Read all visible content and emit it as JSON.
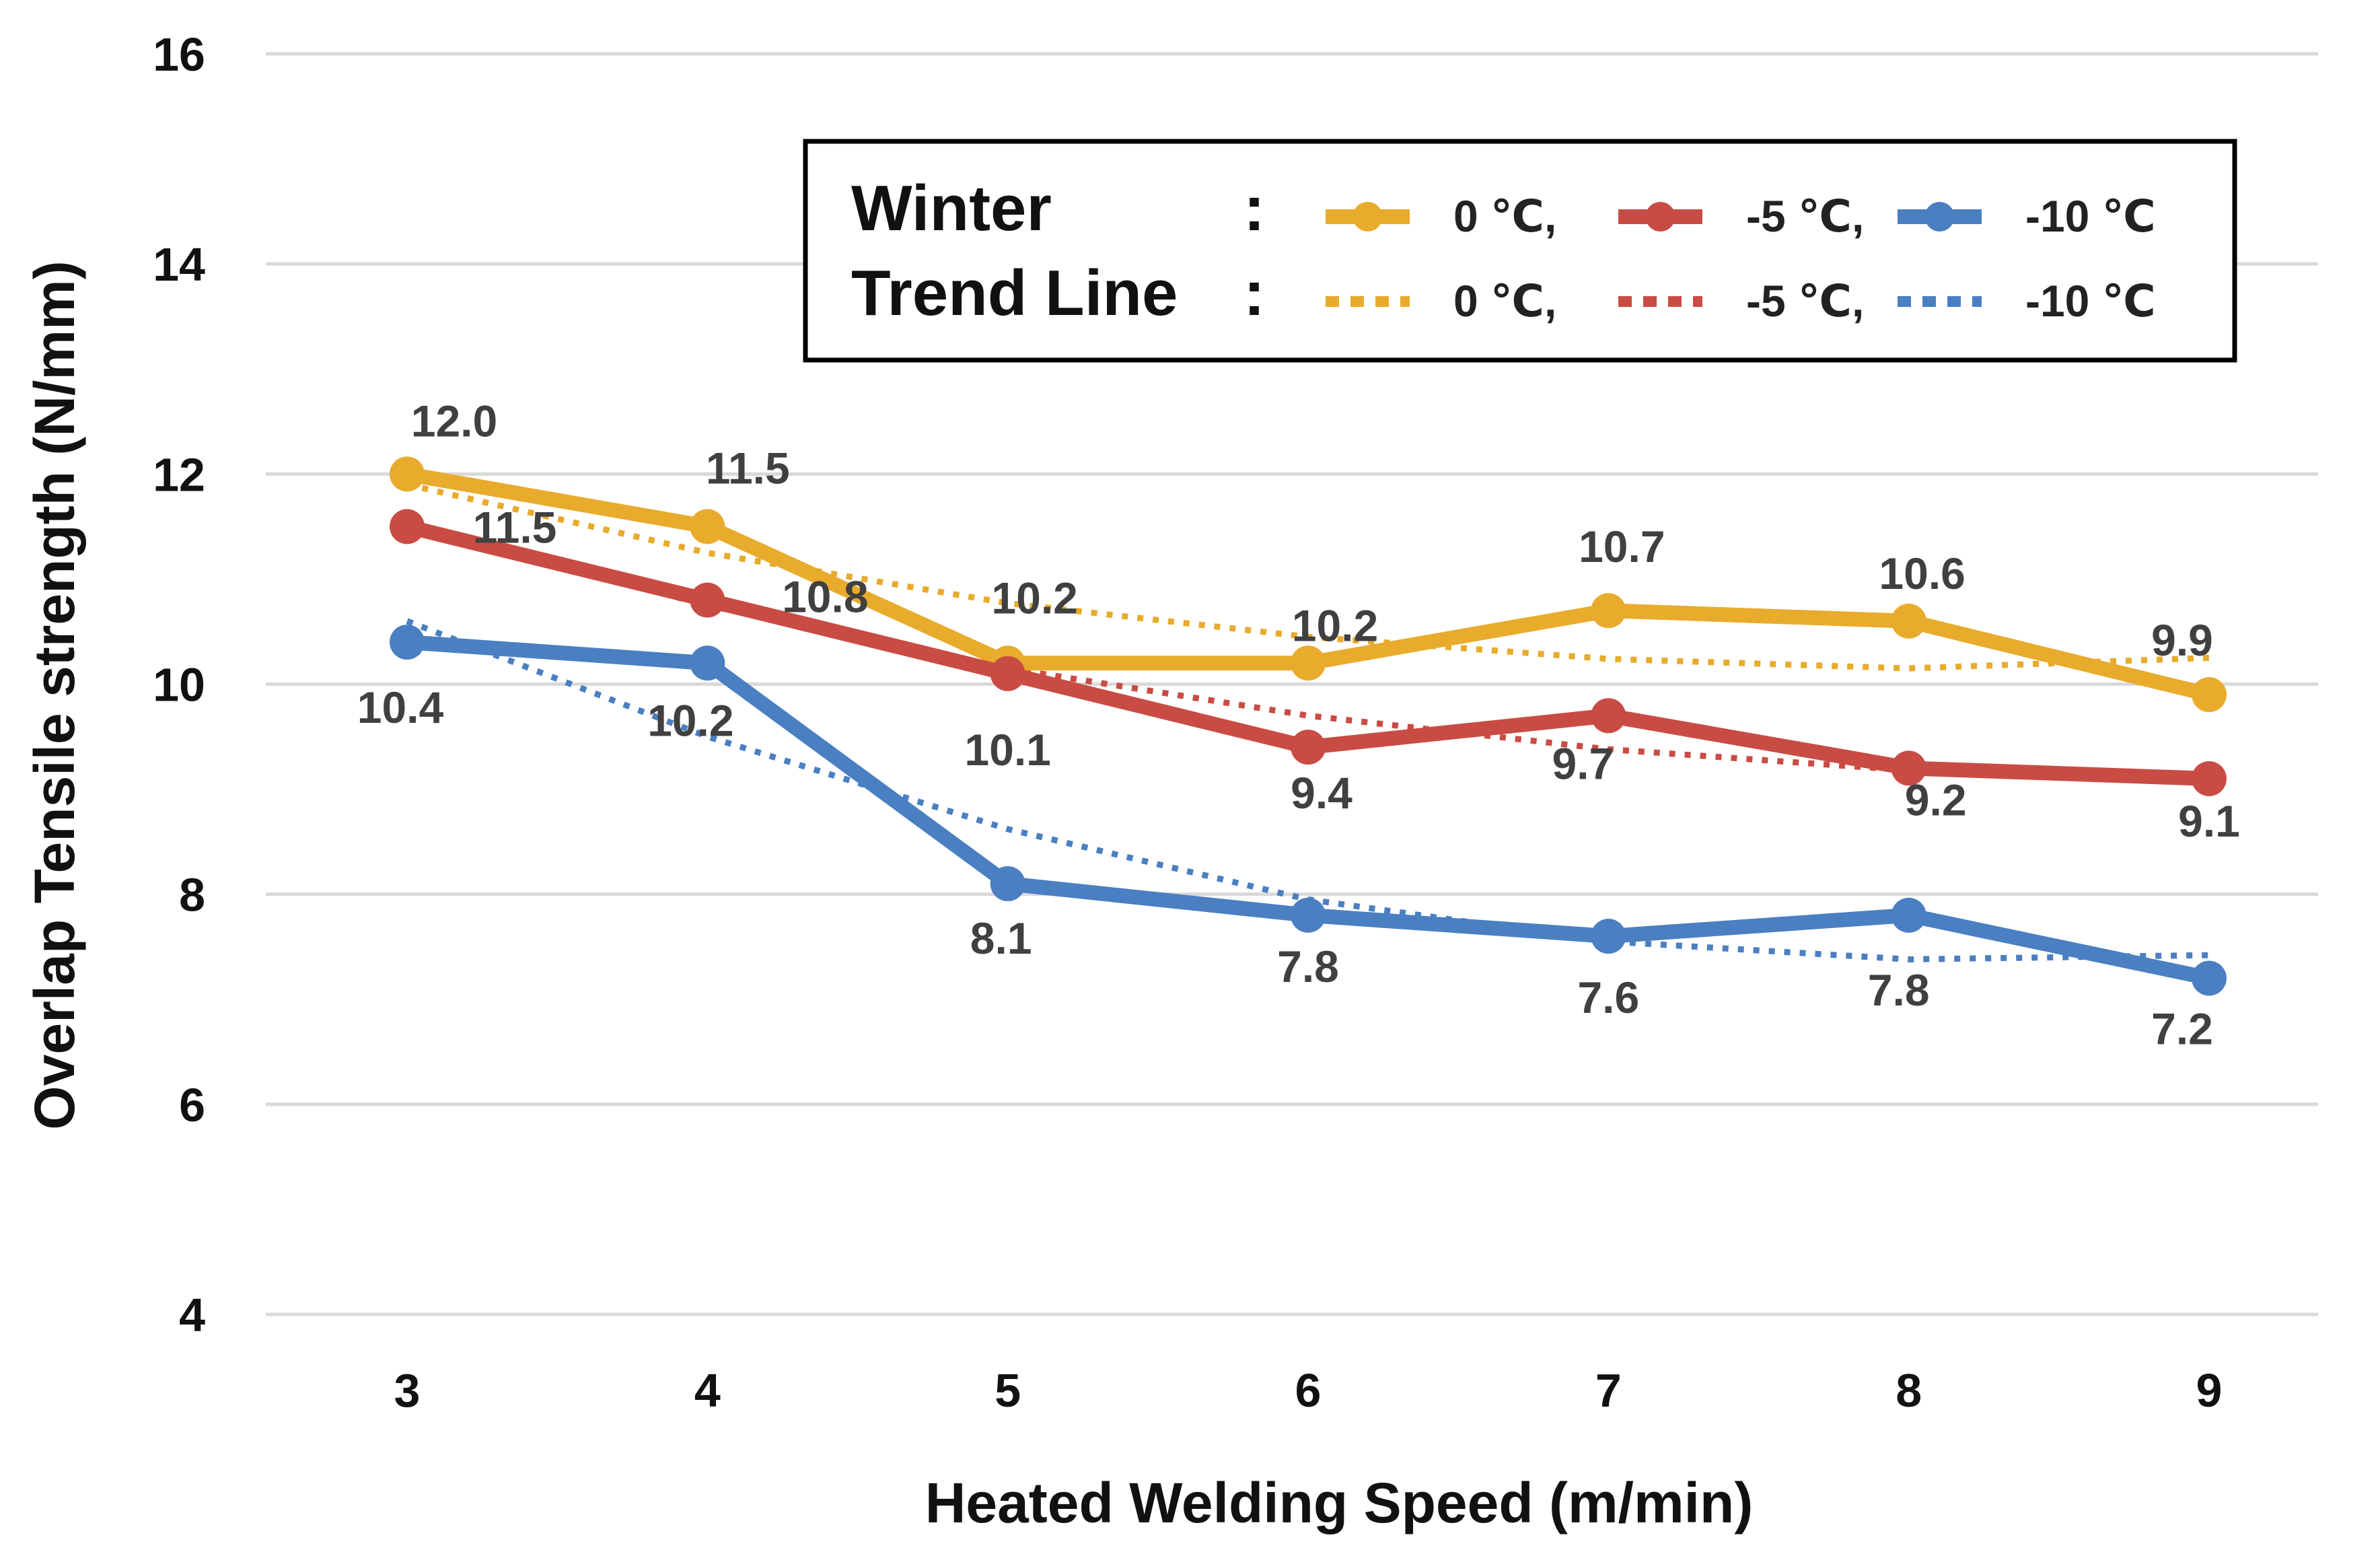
{
  "chart_data": {
    "type": "line",
    "x": [
      3,
      4,
      5,
      6,
      7,
      8,
      9
    ],
    "x_tick_labels": [
      "3",
      "4",
      "5",
      "6",
      "7",
      "8",
      "9"
    ],
    "y_tick_labels": [
      "4",
      "6",
      "8",
      "10",
      "12",
      "14",
      "16"
    ],
    "ylim": [
      4,
      16
    ],
    "grid": true,
    "xlabel": "Heated Welding Speed (m/min)",
    "ylabel": "Overlap Tensile strength (N/mm)",
    "series": [
      {
        "name": "0 ℃,",
        "color": "#e8ab2c",
        "values": [
          12.0,
          11.5,
          10.2,
          10.2,
          10.7,
          10.6,
          9.9
        ],
        "labels": [
          "12.0",
          "11.5",
          "10.2",
          "10.2",
          "10.7",
          "10.6",
          "9.9"
        ],
        "trend": [
          11.9,
          11.25,
          10.77,
          10.45,
          10.24,
          10.15,
          10.25
        ]
      },
      {
        "name": "-5 ℃,",
        "color": "#c94c44",
        "values": [
          11.5,
          10.8,
          10.1,
          9.4,
          9.7,
          9.2,
          9.1
        ],
        "labels": [
          "11.5",
          "10.8",
          "10.1",
          "9.4",
          "9.7",
          "9.2",
          "9.1"
        ],
        "trend": [
          11.5,
          10.75,
          10.15,
          9.7,
          9.38,
          9.18,
          9.1
        ]
      },
      {
        "name": "-10 ℃",
        "color": "#4a7fc1",
        "values": [
          10.4,
          10.2,
          8.1,
          7.8,
          7.6,
          7.8,
          7.2
        ],
        "labels": [
          "10.4",
          "10.2",
          "8.1",
          "7.8",
          "7.6",
          "7.8",
          "7.2"
        ],
        "trend": [
          10.6,
          9.5,
          8.62,
          7.95,
          7.55,
          7.38,
          7.42
        ]
      }
    ],
    "legend": {
      "position": "top-right",
      "row1_title": "Winter",
      "row2_title": "Trend Line",
      "separator": ":"
    }
  }
}
